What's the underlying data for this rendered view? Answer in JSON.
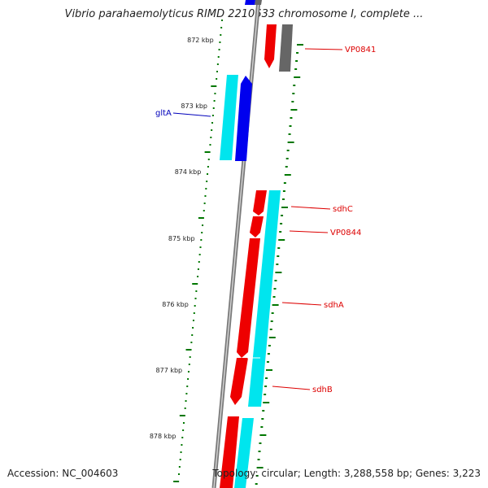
{
  "title": "Vibrio parahaemolyticus RIMD 2210633 chromosome I, complete ...",
  "footer": {
    "accession": "Accession: NC_004603",
    "summary": "Topology: circular; Length: 3,288,558 bp; Genes: 3,223"
  },
  "scale_labels": [
    "872 kbp",
    "873 kbp",
    "874 kbp",
    "875 kbp",
    "876 kbp",
    "877 kbp",
    "878 kbp"
  ],
  "genes": [
    {
      "name": "VP0841",
      "color": "#dd0000"
    },
    {
      "name": "gltA",
      "color": "#0000bb"
    },
    {
      "name": "sdhC",
      "color": "#dd0000"
    },
    {
      "name": "VP0844",
      "color": "#dd0000"
    },
    {
      "name": "sdhA",
      "color": "#dd0000"
    },
    {
      "name": "sdhB",
      "color": "#dd0000"
    }
  ],
  "colors": {
    "backbone": "#7a7a7a",
    "forward_cds": "#ee0000",
    "reverse_cds": "#0000ee",
    "rna_like": "#00e5ee",
    "other_feature": "#666666",
    "tick": "#007700"
  }
}
